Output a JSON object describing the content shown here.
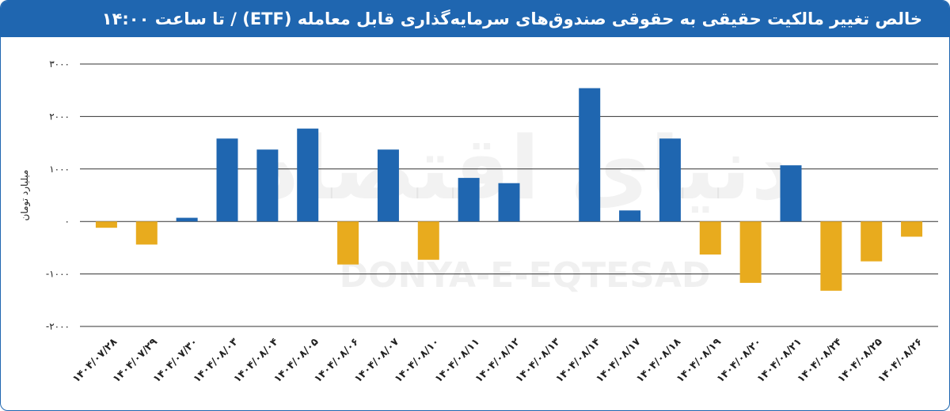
{
  "header": {
    "title": "خالص تغییر مالکیت حقیقی به حقوقی صندوق‌های سرمایه‌گذاری قابل معامله (ETF) / تا ساعت ۱۴:۰۰"
  },
  "watermark": {
    "text": "DONYA-E-EQTESAD",
    "script_text": "دنیای اقتصاد"
  },
  "colors": {
    "title_bg": "#1f66b0",
    "positive": "#1f66b0",
    "negative": "#e8ab1e"
  },
  "chart_data": {
    "type": "bar",
    "title": "خالص تغییر مالکیت حقیقی به حقوقی صندوق‌های سرمایه‌گذاری قابل معامله (ETF) / تا ساعت ۱۴:۰۰",
    "ylabel": "میلیارد تومان",
    "xlabel": "",
    "ylim": [
      -2000,
      3000
    ],
    "yticks": [
      3000,
      2000,
      1000,
      0,
      -1000,
      -2000
    ],
    "ytick_labels": [
      "۳۰۰۰",
      "۲۰۰۰",
      "۱۰۰۰",
      "۰",
      "-۱۰۰۰",
      "-۲۰۰۰"
    ],
    "grid": true,
    "categories": [
      "۱۴۰۴/۰۷/۲۸",
      "۱۴۰۴/۰۷/۲۹",
      "۱۴۰۴/۰۷/۳۰",
      "۱۴۰۴/۰۸/۰۳",
      "۱۴۰۴/۰۸/۰۴",
      "۱۴۰۴/۰۸/۰۵",
      "۱۴۰۴/۰۸/۰۶",
      "۱۴۰۴/۰۸/۰۷",
      "۱۴۰۴/۰۸/۱۰",
      "۱۴۰۴/۰۸/۱۱",
      "۱۴۰۴/۰۸/۱۲",
      "۱۴۰۴/۰۸/۱۳",
      "۱۴۰۴/۰۸/۱۴",
      "۱۴۰۴/۰۸/۱۷",
      "۱۴۰۴/۰۸/۱۸",
      "۱۴۰۴/۰۸/۱۹",
      "۱۴۰۴/۰۸/۲۰",
      "۱۴۰۴/۰۸/۲۱",
      "۱۴۰۴/۰۸/۲۴",
      "۱۴۰۴/۰۸/۲۵",
      "۱۴۰۴/۰۸/۲۶"
    ],
    "values": [
      -120,
      -440,
      70,
      1580,
      1370,
      1770,
      -820,
      1370,
      -730,
      830,
      730,
      0,
      2540,
      210,
      1580,
      -630,
      -1170,
      1070,
      -1320,
      -760,
      -290
    ]
  }
}
